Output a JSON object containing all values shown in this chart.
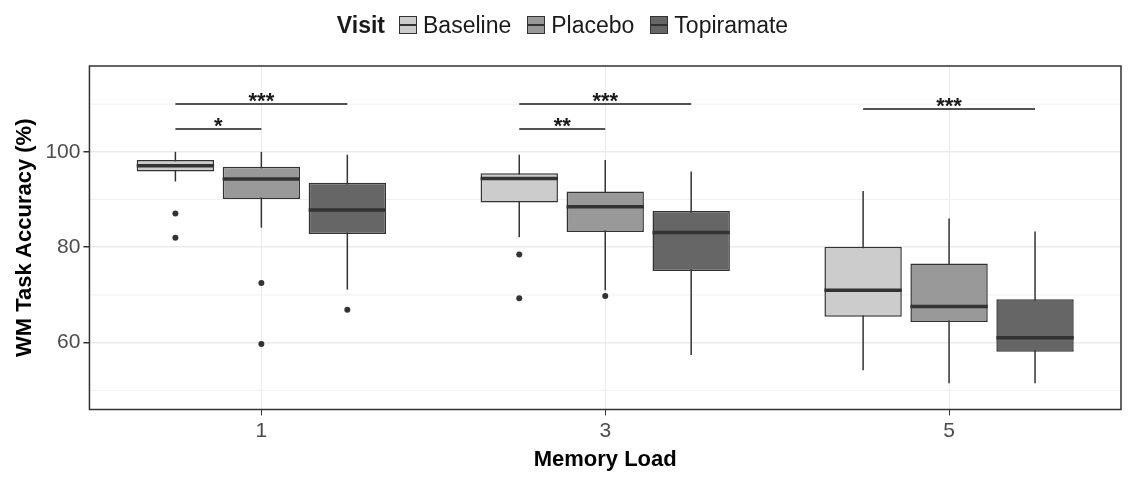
{
  "chart_data": {
    "type": "box",
    "xlabel": "Memory Load",
    "ylabel": "WM Task Accuracy (%)",
    "legend_title": "Visit",
    "legend": "top",
    "grid": true,
    "categories": [
      "1",
      "3",
      "5"
    ],
    "ylim": [
      46,
      118
    ],
    "yticks": [
      60,
      80,
      100
    ],
    "series": [
      {
        "name": "Baseline",
        "color": "#cccccc",
        "boxes": [
          {
            "low": 93.8,
            "q1": 95.9,
            "median": 97.1,
            "q3": 98.3,
            "high": 100,
            "outliers": [
              87.1,
              82
            ]
          },
          {
            "low": 82.1,
            "q1": 89.4,
            "median": 94.4,
            "q3": 95.5,
            "high": 99.4,
            "outliers": [
              78.5,
              69.3
            ]
          },
          {
            "low": 54.2,
            "q1": 65.4,
            "median": 71,
            "q3": 80.1,
            "high": 91.8
          }
        ]
      },
      {
        "name": "Placebo",
        "color": "#999999",
        "boxes": [
          {
            "low": 84.1,
            "q1": 90.1,
            "median": 94.3,
            "q3": 96.9,
            "high": 100,
            "outliers": [
              72.5,
              59.7
            ]
          },
          {
            "low": 71,
            "q1": 83.2,
            "median": 88.5,
            "q3": 91.7,
            "high": 98.3,
            "outliers": [
              69.8
            ]
          },
          {
            "low": 51.5,
            "q1": 64.3,
            "median": 67.6,
            "q3": 76.6,
            "high": 86
          }
        ]
      },
      {
        "name": "Topiramate",
        "color": "#666666",
        "boxes": [
          {
            "low": 71.1,
            "q1": 82.8,
            "median": 87.8,
            "q3": 93.5,
            "high": 99.4,
            "outliers": [
              66.9
            ]
          },
          {
            "low": 57.4,
            "q1": 75,
            "median": 83.1,
            "q3": 87.6,
            "high": 95.9
          },
          {
            "low": 51.5,
            "q1": 58.1,
            "median": 61,
            "q3": 69.1,
            "high": 83.3
          }
        ]
      }
    ],
    "annotations": [
      "***",
      "*",
      "***",
      "**",
      "***"
    ]
  }
}
